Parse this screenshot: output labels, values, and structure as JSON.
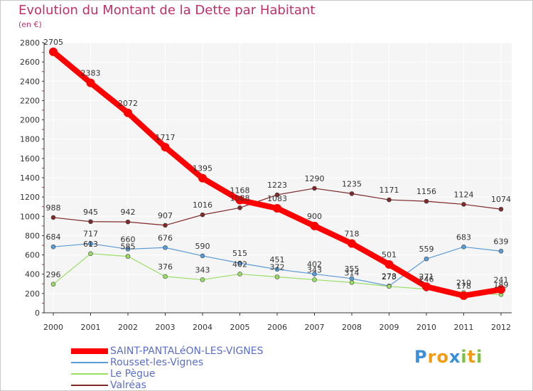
{
  "chart_data": {
    "type": "line",
    "title": "Evolution du Montant de la Dette par Habitant",
    "subtitle": "(en €)",
    "x": [
      "2000",
      "2001",
      "2002",
      "2003",
      "2004",
      "2005",
      "2006",
      "2007",
      "2008",
      "2009",
      "2010",
      "2011",
      "2012"
    ],
    "ylim": [
      0,
      2800
    ],
    "yticks": [
      0,
      200,
      400,
      600,
      800,
      1000,
      1200,
      1400,
      1600,
      1800,
      2000,
      2200,
      2400,
      2600,
      2800
    ],
    "grid": true,
    "legend_position": "bottom",
    "series": [
      {
        "name": "SAINT-PANTALéON-LES-VIGNES",
        "color": "#ff0000",
        "values": [
          2705,
          2383,
          2072,
          1717,
          1395,
          1168,
          1083,
          900,
          718,
          501,
          271,
          178,
          241
        ]
      },
      {
        "name": "Rousset-les-Vignes",
        "color": "#5b9bd5",
        "values": [
          684,
          717,
          660,
          676,
          590,
          515,
          451,
          402,
          355,
          278,
          559,
          683,
          639
        ]
      },
      {
        "name": "Le Pègue",
        "color": "#99dd66",
        "values": [
          296,
          613,
          585,
          376,
          343,
          402,
          372,
          343,
          314,
          273,
          246,
          210,
          189
        ]
      },
      {
        "name": "Valréas",
        "color": "#7f2a2a",
        "values": [
          988,
          945,
          942,
          907,
          1016,
          1088,
          1223,
          1290,
          1235,
          1171,
          1156,
          1124,
          1074
        ]
      }
    ]
  },
  "logo": {
    "letters": [
      "P",
      "r",
      "o",
      "x",
      "i",
      "t",
      "i"
    ],
    "colors": [
      "#3a8fd8",
      "#f39c12",
      "#f39c12",
      "#3a8fd8",
      "#7cc242",
      "#f39c12",
      "#7cc242"
    ]
  }
}
